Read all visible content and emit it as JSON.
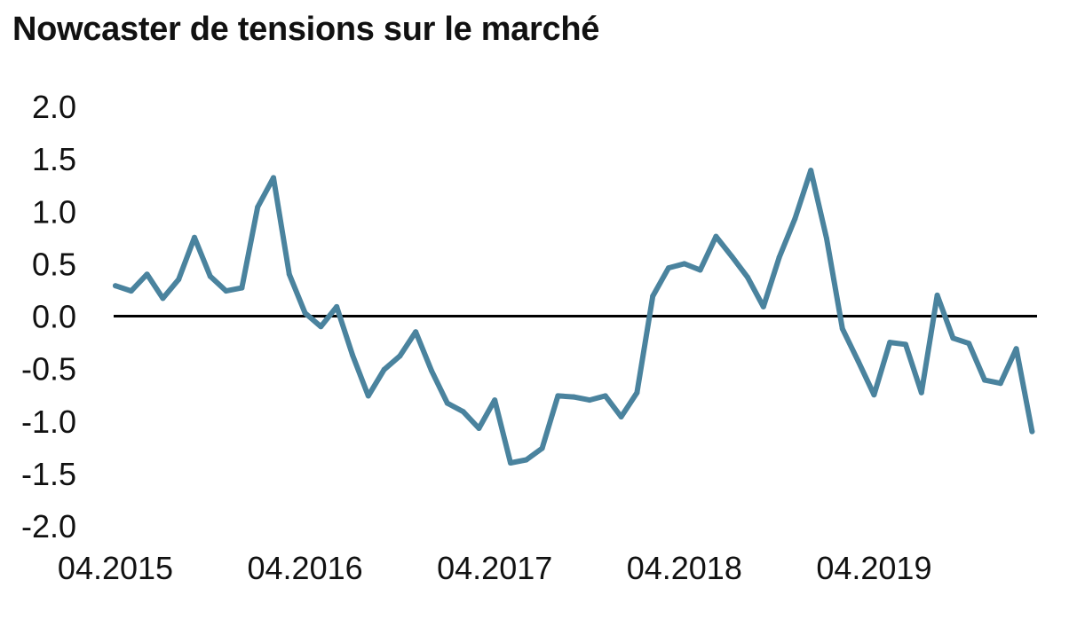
{
  "chart_data": {
    "type": "line",
    "title": "Nowcaster de tensions sur le marché",
    "xlabel": "",
    "ylabel": "",
    "x_tick_labels": [
      "04.2015",
      "04.2016",
      "04.2017",
      "04.2018",
      "04.2019"
    ],
    "y_tick_labels": [
      "2.0",
      "1.5",
      "1.0",
      "0.5",
      "0.0",
      "-0.5",
      "-1.0",
      "-1.5",
      "-2.0"
    ],
    "y_ticks": [
      2.0,
      1.5,
      1.0,
      0.5,
      0.0,
      -0.5,
      -1.0,
      -1.5,
      -2.0
    ],
    "ylim": [
      -2.0,
      2.0
    ],
    "xlim": [
      "2015-03",
      "2019-12"
    ],
    "grid": false,
    "zero_line": true,
    "series": [
      {
        "color": "#4a839e",
        "points": [
          {
            "x": "2015-04",
            "y": 0.29
          },
          {
            "x": "2015-05",
            "y": 0.24
          },
          {
            "x": "2015-06",
            "y": 0.4
          },
          {
            "x": "2015-07",
            "y": 0.17
          },
          {
            "x": "2015-08",
            "y": 0.35
          },
          {
            "x": "2015-09",
            "y": 0.75
          },
          {
            "x": "2015-10",
            "y": 0.38
          },
          {
            "x": "2015-11",
            "y": 0.24
          },
          {
            "x": "2015-12",
            "y": 0.27
          },
          {
            "x": "2016-01",
            "y": 1.04
          },
          {
            "x": "2016-02",
            "y": 1.32
          },
          {
            "x": "2016-03",
            "y": 0.4
          },
          {
            "x": "2016-04",
            "y": 0.03
          },
          {
            "x": "2016-05",
            "y": -0.1
          },
          {
            "x": "2016-06",
            "y": 0.09
          },
          {
            "x": "2016-07",
            "y": -0.37
          },
          {
            "x": "2016-08",
            "y": -0.76
          },
          {
            "x": "2016-09",
            "y": -0.51
          },
          {
            "x": "2016-10",
            "y": -0.38
          },
          {
            "x": "2016-11",
            "y": -0.15
          },
          {
            "x": "2016-12",
            "y": -0.52
          },
          {
            "x": "2017-01",
            "y": -0.83
          },
          {
            "x": "2017-02",
            "y": -0.91
          },
          {
            "x": "2017-03",
            "y": -1.07
          },
          {
            "x": "2017-04",
            "y": -0.8
          },
          {
            "x": "2017-05",
            "y": -1.4
          },
          {
            "x": "2017-06",
            "y": -1.37
          },
          {
            "x": "2017-07",
            "y": -1.26
          },
          {
            "x": "2017-08",
            "y": -0.76
          },
          {
            "x": "2017-09",
            "y": -0.77
          },
          {
            "x": "2017-10",
            "y": -0.8
          },
          {
            "x": "2017-11",
            "y": -0.76
          },
          {
            "x": "2017-12",
            "y": -0.96
          },
          {
            "x": "2018-01",
            "y": -0.73
          },
          {
            "x": "2018-02",
            "y": 0.19
          },
          {
            "x": "2018-03",
            "y": 0.46
          },
          {
            "x": "2018-04",
            "y": 0.5
          },
          {
            "x": "2018-05",
            "y": 0.44
          },
          {
            "x": "2018-06",
            "y": 0.76
          },
          {
            "x": "2018-07",
            "y": 0.57
          },
          {
            "x": "2018-08",
            "y": 0.37
          },
          {
            "x": "2018-09",
            "y": 0.09
          },
          {
            "x": "2018-10",
            "y": 0.56
          },
          {
            "x": "2018-11",
            "y": 0.93
          },
          {
            "x": "2018-12",
            "y": 1.39
          },
          {
            "x": "2019-01",
            "y": 0.74
          },
          {
            "x": "2019-02",
            "y": -0.12
          },
          {
            "x": "2019-03",
            "y": -0.43
          },
          {
            "x": "2019-04",
            "y": -0.75
          },
          {
            "x": "2019-05",
            "y": -0.25
          },
          {
            "x": "2019-06",
            "y": -0.27
          },
          {
            "x": "2019-07",
            "y": -0.73
          },
          {
            "x": "2019-08",
            "y": 0.2
          },
          {
            "x": "2019-09",
            "y": -0.21
          },
          {
            "x": "2019-10",
            "y": -0.26
          },
          {
            "x": "2019-11",
            "y": -0.61
          },
          {
            "x": "2019-12",
            "y": -0.64
          },
          {
            "x": "2020-01",
            "y": -0.31
          },
          {
            "x": "2020-02",
            "y": -1.1
          }
        ]
      }
    ]
  }
}
